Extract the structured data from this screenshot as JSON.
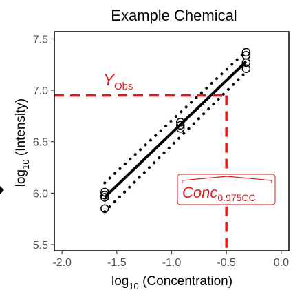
{
  "chart_data": {
    "type": "scatter",
    "title": "Example Chemical",
    "xlabel": {
      "prefix": "log",
      "sub": "10",
      "suffix": " (Concentration)"
    },
    "ylabel": {
      "prefix": "log",
      "sub": "10",
      "suffix": " (Intensity)"
    },
    "xlim": [
      -2.07,
      0.07
    ],
    "ylim": [
      5.44,
      7.57
    ],
    "x_ticks": [
      "-2.0",
      "-1.5",
      "-1.0",
      "-0.5",
      "0.0"
    ],
    "x_tick_values": [
      -2.0,
      -1.5,
      -1.0,
      -0.5,
      0.0
    ],
    "y_ticks": [
      "5.5",
      "6.0",
      "6.5",
      "7.0",
      "7.5"
    ],
    "y_tick_values": [
      5.5,
      6.0,
      6.5,
      7.0,
      7.5
    ],
    "grid": false,
    "points": [
      {
        "x": -1.61,
        "y": 5.85
      },
      {
        "x": -1.61,
        "y": 5.96
      },
      {
        "x": -1.61,
        "y": 5.98
      },
      {
        "x": -1.61,
        "y": 6.01
      },
      {
        "x": -0.92,
        "y": 6.63
      },
      {
        "x": -0.92,
        "y": 6.66
      },
      {
        "x": -0.92,
        "y": 6.69
      },
      {
        "x": -0.32,
        "y": 7.21
      },
      {
        "x": -0.32,
        "y": 7.27
      },
      {
        "x": -0.32,
        "y": 7.34
      },
      {
        "x": -0.32,
        "y": 7.37
      }
    ],
    "fit_line": {
      "x": [
        -1.61,
        -0.32
      ],
      "y": [
        5.96,
        7.28
      ]
    },
    "upper_band": {
      "x": [
        -1.61,
        -0.32
      ],
      "y": [
        6.1,
        7.38
      ]
    },
    "lower_band": {
      "x": [
        -1.61,
        -0.32
      ],
      "y": [
        5.82,
        7.18
      ]
    },
    "y_obs": 6.95,
    "conc_est": -0.5,
    "y_obs_label": {
      "main": "Y",
      "sub": "Obs"
    },
    "conc_label": {
      "main": "Conc",
      "sub": "0.975CC"
    },
    "annotation_color": "#e31a1c"
  }
}
